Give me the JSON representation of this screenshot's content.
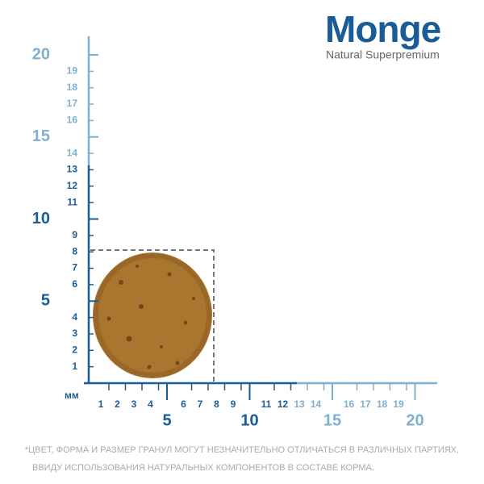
{
  "logo": {
    "brand": "Monge",
    "tagline": "Natural Superpremium"
  },
  "ruler": {
    "unit": "мм",
    "y_small": [
      1,
      2,
      3,
      4,
      6,
      7,
      8,
      9,
      11,
      12,
      13,
      14,
      16,
      17,
      18,
      19
    ],
    "y_large": [
      5,
      10,
      15,
      20
    ],
    "x_small": [
      1,
      2,
      3,
      4,
      6,
      7,
      8,
      9,
      11,
      12,
      13,
      14,
      16,
      17,
      18,
      19
    ],
    "x_large": [
      5,
      10,
      15,
      20
    ]
  },
  "footnote": {
    "line1": "*ЦВЕТ, ФОРМА И РАЗМЕР ГРАНУЛ МОГУТ НЕЗНАЧИТЕЛЬНО ОТЛИЧАТЬСЯ В РАЗЛИЧНЫХ ПАРТИЯХ,",
    "line2": "ВВИДУ ИСПОЛЬЗОВАНИЯ НАТУРАЛЬНЫХ КОМПОНЕНТОВ В СОСТАВЕ КОРМА."
  }
}
